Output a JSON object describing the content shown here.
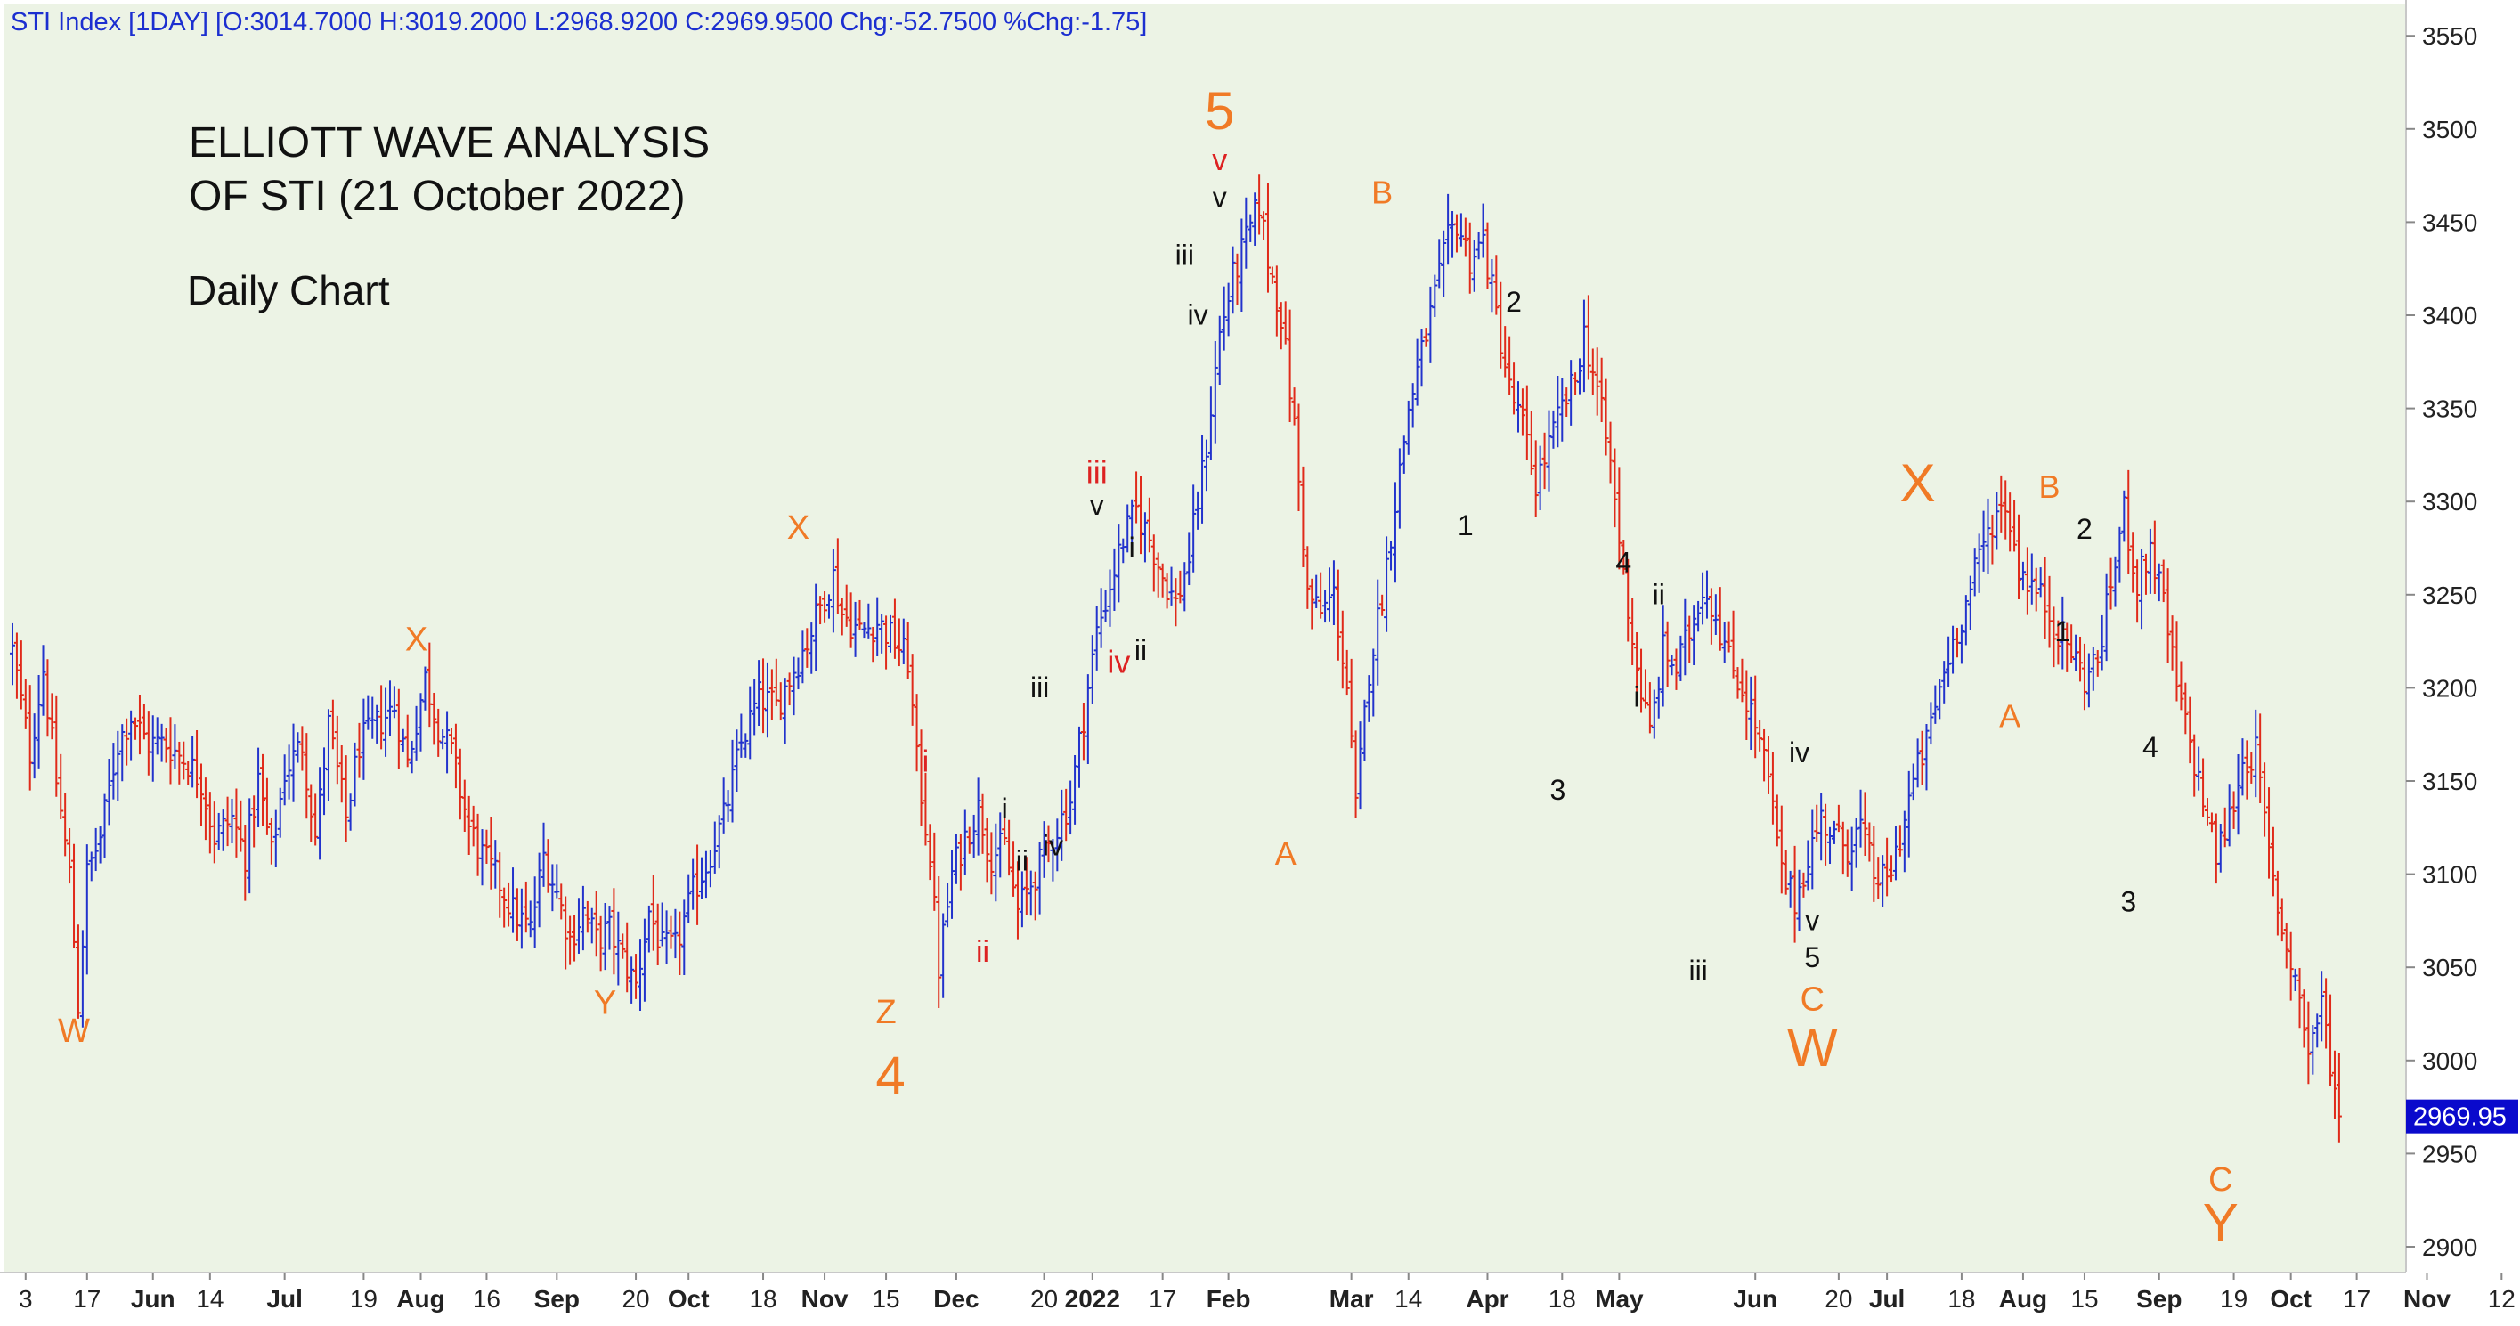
{
  "header": {
    "text": "STI Index [1DAY] [O:3014.7000 H:3019.2000 L:2968.9200 C:2969.9500 Chg:-52.7500 %Chg:-1.75]"
  },
  "annotations": {
    "title_line1": "ELLIOTT WAVE ANALYSIS",
    "title_line2": "OF STI (21 October 2022)",
    "subtitle": "Daily Chart"
  },
  "colors": {
    "plot_bg": "#ecf3e5",
    "up_bar": "#2233cc",
    "down_bar": "#e02a1a",
    "wave_orange": "#f07a26",
    "wave_red": "#dd2222",
    "wave_black": "#111111",
    "price_tag_bg": "#0a0acc",
    "header_text": "#1c2fd0"
  },
  "chart_data": {
    "type": "ohlc",
    "series": [
      {
        "name": "STI Index",
        "interval": "1DAY"
      }
    ],
    "last_price": "2969.95",
    "ylim": [
      2890,
      3570
    ],
    "y_ticks": [
      2900,
      2950,
      3000,
      3050,
      3100,
      3150,
      3200,
      3250,
      3300,
      3350,
      3400,
      3450,
      3500,
      3550
    ],
    "x_tick_labels": [
      {
        "text": "3",
        "day": 3,
        "bold": false
      },
      {
        "text": "17",
        "day": 17,
        "bold": false
      },
      {
        "text": "Jun",
        "day": 32,
        "bold": true
      },
      {
        "text": "14",
        "day": 45,
        "bold": false
      },
      {
        "text": "Jul",
        "day": 62,
        "bold": true
      },
      {
        "text": "19",
        "day": 80,
        "bold": false
      },
      {
        "text": "Aug",
        "day": 93,
        "bold": true
      },
      {
        "text": "16",
        "day": 108,
        "bold": false
      },
      {
        "text": "Sep",
        "day": 124,
        "bold": true
      },
      {
        "text": "20",
        "day": 142,
        "bold": false
      },
      {
        "text": "Oct",
        "day": 154,
        "bold": true
      },
      {
        "text": "18",
        "day": 171,
        "bold": false
      },
      {
        "text": "Nov",
        "day": 185,
        "bold": true
      },
      {
        "text": "15",
        "day": 199,
        "bold": false
      },
      {
        "text": "Dec",
        "day": 215,
        "bold": true
      },
      {
        "text": "20",
        "day": 235,
        "bold": false
      },
      {
        "text": "2022",
        "day": 246,
        "bold": true
      },
      {
        "text": "17",
        "day": 262,
        "bold": false
      },
      {
        "text": "Feb",
        "day": 277,
        "bold": true
      },
      {
        "text": "Mar",
        "day": 305,
        "bold": true
      },
      {
        "text": "14",
        "day": 318,
        "bold": false
      },
      {
        "text": "Apr",
        "day": 336,
        "bold": true
      },
      {
        "text": "18",
        "day": 353,
        "bold": false
      },
      {
        "text": "May",
        "day": 366,
        "bold": true
      },
      {
        "text": "Jun",
        "day": 397,
        "bold": true
      },
      {
        "text": "20",
        "day": 416,
        "bold": false
      },
      {
        "text": "Jul",
        "day": 427,
        "bold": true
      },
      {
        "text": "18",
        "day": 444,
        "bold": false
      },
      {
        "text": "Aug",
        "day": 458,
        "bold": true
      },
      {
        "text": "15",
        "day": 472,
        "bold": false
      },
      {
        "text": "Sep",
        "day": 489,
        "bold": true
      },
      {
        "text": "19",
        "day": 506,
        "bold": false
      },
      {
        "text": "Oct",
        "day": 519,
        "bold": true
      },
      {
        "text": "17",
        "day": 534,
        "bold": false
      },
      {
        "text": "Nov",
        "day": 550,
        "bold": true
      },
      {
        "text": "12",
        "day": 567,
        "bold": false
      }
    ],
    "price_path": [
      [
        0,
        3220
      ],
      [
        4,
        3165
      ],
      [
        7,
        3210
      ],
      [
        10,
        3150
      ],
      [
        13,
        3100
      ],
      [
        15,
        3030
      ],
      [
        17,
        3100
      ],
      [
        20,
        3120
      ],
      [
        24,
        3170
      ],
      [
        27,
        3185
      ],
      [
        31,
        3170
      ],
      [
        35,
        3170
      ],
      [
        40,
        3160
      ],
      [
        43,
        3150
      ],
      [
        46,
        3120
      ],
      [
        50,
        3130
      ],
      [
        53,
        3110
      ],
      [
        56,
        3150
      ],
      [
        59,
        3110
      ],
      [
        62,
        3155
      ],
      [
        66,
        3170
      ],
      [
        69,
        3120
      ],
      [
        72,
        3180
      ],
      [
        76,
        3130
      ],
      [
        79,
        3170
      ],
      [
        83,
        3180
      ],
      [
        87,
        3190
      ],
      [
        90,
        3160
      ],
      [
        94,
        3205
      ],
      [
        97,
        3180
      ],
      [
        100,
        3165
      ],
      [
        104,
        3125
      ],
      [
        107,
        3110
      ],
      [
        111,
        3095
      ],
      [
        114,
        3080
      ],
      [
        118,
        3070
      ],
      [
        121,
        3110
      ],
      [
        124,
        3090
      ],
      [
        127,
        3065
      ],
      [
        130,
        3080
      ],
      [
        133,
        3065
      ],
      [
        136,
        3070
      ],
      [
        139,
        3055
      ],
      [
        142,
        3040
      ],
      [
        145,
        3080
      ],
      [
        148,
        3060
      ],
      [
        151,
        3060
      ],
      [
        155,
        3090
      ],
      [
        158,
        3105
      ],
      [
        162,
        3130
      ],
      [
        166,
        3170
      ],
      [
        170,
        3195
      ],
      [
        174,
        3190
      ],
      [
        178,
        3210
      ],
      [
        181,
        3225
      ],
      [
        185,
        3250
      ],
      [
        187,
        3260
      ],
      [
        189,
        3240
      ],
      [
        193,
        3230
      ],
      [
        197,
        3235
      ],
      [
        201,
        3225
      ],
      [
        204,
        3215
      ],
      [
        206,
        3160
      ],
      [
        209,
        3110
      ],
      [
        211,
        3050
      ],
      [
        214,
        3100
      ],
      [
        217,
        3120
      ],
      [
        220,
        3135
      ],
      [
        223,
        3110
      ],
      [
        226,
        3115
      ],
      [
        229,
        3080
      ],
      [
        232,
        3095
      ],
      [
        235,
        3110
      ],
      [
        238,
        3125
      ],
      [
        241,
        3140
      ],
      [
        244,
        3185
      ],
      [
        247,
        3230
      ],
      [
        250,
        3255
      ],
      [
        253,
        3280
      ],
      [
        256,
        3295
      ],
      [
        259,
        3280
      ],
      [
        262,
        3260
      ],
      [
        265,
        3245
      ],
      [
        268,
        3270
      ],
      [
        272,
        3330
      ],
      [
        275,
        3390
      ],
      [
        278,
        3420
      ],
      [
        281,
        3440
      ],
      [
        284,
        3460
      ],
      [
        286,
        3430
      ],
      [
        289,
        3400
      ],
      [
        292,
        3340
      ],
      [
        295,
        3250
      ],
      [
        298,
        3240
      ],
      [
        301,
        3250
      ],
      [
        304,
        3200
      ],
      [
        306,
        3135
      ],
      [
        309,
        3210
      ],
      [
        312,
        3250
      ],
      [
        315,
        3300
      ],
      [
        318,
        3350
      ],
      [
        321,
        3380
      ],
      [
        324,
        3410
      ],
      [
        327,
        3440
      ],
      [
        329,
        3450
      ],
      [
        332,
        3430
      ],
      [
        335,
        3440
      ],
      [
        338,
        3400
      ],
      [
        341,
        3360
      ],
      [
        344,
        3340
      ],
      [
        347,
        3310
      ],
      [
        350,
        3330
      ],
      [
        353,
        3350
      ],
      [
        356,
        3365
      ],
      [
        358,
        3390
      ],
      [
        361,
        3360
      ],
      [
        364,
        3320
      ],
      [
        367,
        3260
      ],
      [
        370,
        3210
      ],
      [
        373,
        3175
      ],
      [
        376,
        3220
      ],
      [
        379,
        3210
      ],
      [
        382,
        3230
      ],
      [
        385,
        3255
      ],
      [
        388,
        3240
      ],
      [
        391,
        3215
      ],
      [
        394,
        3200
      ],
      [
        397,
        3180
      ],
      [
        400,
        3150
      ],
      [
        403,
        3100
      ],
      [
        406,
        3085
      ],
      [
        409,
        3110
      ],
      [
        412,
        3130
      ],
      [
        415,
        3120
      ],
      [
        418,
        3115
      ],
      [
        421,
        3125
      ],
      [
        424,
        3100
      ],
      [
        427,
        3095
      ],
      [
        430,
        3120
      ],
      [
        433,
        3150
      ],
      [
        436,
        3170
      ],
      [
        439,
        3200
      ],
      [
        442,
        3225
      ],
      [
        445,
        3245
      ],
      [
        448,
        3270
      ],
      [
        451,
        3290
      ],
      [
        454,
        3300
      ],
      [
        457,
        3265
      ],
      [
        460,
        3255
      ],
      [
        463,
        3245
      ],
      [
        466,
        3230
      ],
      [
        469,
        3220
      ],
      [
        472,
        3205
      ],
      [
        475,
        3215
      ],
      [
        478,
        3255
      ],
      [
        481,
        3295
      ],
      [
        484,
        3255
      ],
      [
        487,
        3275
      ],
      [
        490,
        3245
      ],
      [
        493,
        3200
      ],
      [
        496,
        3170
      ],
      [
        499,
        3140
      ],
      [
        502,
        3110
      ],
      [
        505,
        3130
      ],
      [
        508,
        3160
      ],
      [
        511,
        3165
      ],
      [
        514,
        3110
      ],
      [
        517,
        3070
      ],
      [
        520,
        3045
      ],
      [
        523,
        3005
      ],
      [
        526,
        3030
      ],
      [
        528,
        3000
      ],
      [
        530,
        2970
      ]
    ]
  },
  "wave_labels": [
    {
      "text": "W",
      "day": 14,
      "price": 3010,
      "size": 38,
      "color": "wave_orange"
    },
    {
      "text": "X",
      "day": 92,
      "price": 3220,
      "size": 38,
      "color": "wave_orange"
    },
    {
      "text": "Y",
      "day": 135,
      "price": 3025,
      "size": 38,
      "color": "wave_orange"
    },
    {
      "text": "X",
      "day": 179,
      "price": 3280,
      "size": 38,
      "color": "wave_orange"
    },
    {
      "text": "Z",
      "day": 199,
      "price": 3020,
      "size": 38,
      "color": "wave_orange"
    },
    {
      "text": "4",
      "day": 200,
      "price": 2982,
      "size": 60,
      "color": "wave_orange"
    },
    {
      "text": "i",
      "day": 208,
      "price": 3155,
      "size": 34,
      "color": "wave_red"
    },
    {
      "text": "ii",
      "day": 221,
      "price": 3053,
      "size": 34,
      "color": "wave_red"
    },
    {
      "text": "i",
      "day": 226,
      "price": 3130,
      "size": 32,
      "color": "wave_black"
    },
    {
      "text": "ii",
      "day": 230,
      "price": 3102,
      "size": 32,
      "color": "wave_black"
    },
    {
      "text": "iii",
      "day": 234,
      "price": 3195,
      "size": 32,
      "color": "wave_black"
    },
    {
      "text": "iv",
      "day": 237,
      "price": 3110,
      "size": 32,
      "color": "wave_black"
    },
    {
      "text": "iii",
      "day": 247,
      "price": 3310,
      "size": 36,
      "color": "wave_red"
    },
    {
      "text": "v",
      "day": 247,
      "price": 3293,
      "size": 32,
      "color": "wave_black"
    },
    {
      "text": "i",
      "day": 255,
      "price": 3270,
      "size": 32,
      "color": "wave_black"
    },
    {
      "text": "iv",
      "day": 252,
      "price": 3208,
      "size": 36,
      "color": "wave_red"
    },
    {
      "text": "ii",
      "day": 257,
      "price": 3215,
      "size": 32,
      "color": "wave_black"
    },
    {
      "text": "iii",
      "day": 267,
      "price": 3427,
      "size": 32,
      "color": "wave_black"
    },
    {
      "text": "iv",
      "day": 270,
      "price": 3395,
      "size": 32,
      "color": "wave_black"
    },
    {
      "text": "5",
      "day": 275,
      "price": 3500,
      "size": 60,
      "color": "wave_orange"
    },
    {
      "text": "v",
      "day": 275,
      "price": 3478,
      "size": 34,
      "color": "wave_red"
    },
    {
      "text": "v",
      "day": 275,
      "price": 3458,
      "size": 32,
      "color": "wave_black"
    },
    {
      "text": "A",
      "day": 290,
      "price": 3105,
      "size": 36,
      "color": "wave_orange"
    },
    {
      "text": "B",
      "day": 312,
      "price": 3460,
      "size": 36,
      "color": "wave_orange"
    },
    {
      "text": "1",
      "day": 331,
      "price": 3282,
      "size": 32,
      "color": "wave_black"
    },
    {
      "text": "2",
      "day": 342,
      "price": 3402,
      "size": 32,
      "color": "wave_black"
    },
    {
      "text": "3",
      "day": 352,
      "price": 3140,
      "size": 32,
      "color": "wave_black"
    },
    {
      "text": "4",
      "day": 367,
      "price": 3262,
      "size": 32,
      "color": "wave_black"
    },
    {
      "text": "ii",
      "day": 375,
      "price": 3245,
      "size": 32,
      "color": "wave_black"
    },
    {
      "text": "i",
      "day": 370,
      "price": 3190,
      "size": 32,
      "color": "wave_black"
    },
    {
      "text": "iii",
      "day": 384,
      "price": 3043,
      "size": 32,
      "color": "wave_black"
    },
    {
      "text": "iv",
      "day": 407,
      "price": 3160,
      "size": 32,
      "color": "wave_black"
    },
    {
      "text": "v",
      "day": 410,
      "price": 3070,
      "size": 32,
      "color": "wave_black"
    },
    {
      "text": "5",
      "day": 410,
      "price": 3050,
      "size": 32,
      "color": "wave_black"
    },
    {
      "text": "C",
      "day": 410,
      "price": 3027,
      "size": 38,
      "color": "wave_orange"
    },
    {
      "text": "W",
      "day": 410,
      "price": 2997,
      "size": 60,
      "color": "wave_orange"
    },
    {
      "text": "X",
      "day": 434,
      "price": 3300,
      "size": 60,
      "color": "wave_orange"
    },
    {
      "text": "A",
      "day": 455,
      "price": 3179,
      "size": 36,
      "color": "wave_orange"
    },
    {
      "text": "B",
      "day": 464,
      "price": 3302,
      "size": 36,
      "color": "wave_orange"
    },
    {
      "text": "1",
      "day": 467,
      "price": 3225,
      "size": 32,
      "color": "wave_black"
    },
    {
      "text": "2",
      "day": 472,
      "price": 3280,
      "size": 32,
      "color": "wave_black"
    },
    {
      "text": "3",
      "day": 482,
      "price": 3080,
      "size": 32,
      "color": "wave_black"
    },
    {
      "text": "4",
      "day": 487,
      "price": 3163,
      "size": 32,
      "color": "wave_black"
    },
    {
      "text": "C",
      "day": 503,
      "price": 2930,
      "size": 38,
      "color": "wave_orange"
    },
    {
      "text": "Y",
      "day": 503,
      "price": 2903,
      "size": 60,
      "color": "wave_orange"
    }
  ]
}
